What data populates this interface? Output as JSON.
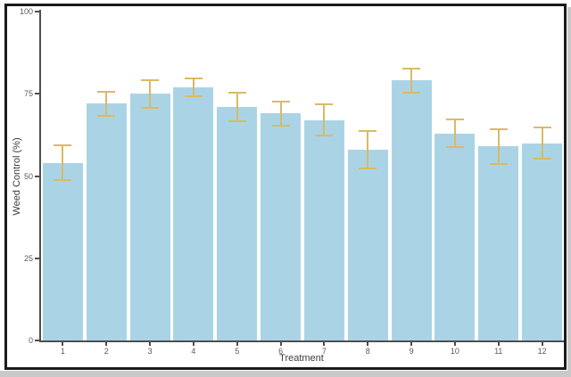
{
  "figure": {
    "background_color": "#ffffff",
    "frame_color": "#1b1b1b",
    "outer_edge_color": "#c9c9c9"
  },
  "chart_data": {
    "type": "bar",
    "title": "",
    "xlabel": "Treatment",
    "ylabel": "Weed Control (%)",
    "categories": [
      "1",
      "2",
      "3",
      "4",
      "5",
      "6",
      "7",
      "8",
      "9",
      "10",
      "11",
      "12"
    ],
    "values": [
      54,
      72,
      75,
      77,
      71,
      69,
      67,
      58,
      79,
      63,
      59,
      60
    ],
    "error_bars": [
      5.5,
      4,
      4.5,
      3,
      4.5,
      4,
      5,
      6,
      4,
      4.5,
      5.5,
      5
    ],
    "ylim": [
      0,
      100
    ],
    "yticks": [
      0,
      25,
      50,
      75,
      100
    ],
    "grid": false,
    "legend": "none",
    "bar_color": "#aad4e6",
    "error_bar_color": "#d9ba66",
    "axis_color": "#4f4f4f",
    "tick_label_color": "#5a5a5a",
    "axis_title_color": "#3d3d3d"
  }
}
